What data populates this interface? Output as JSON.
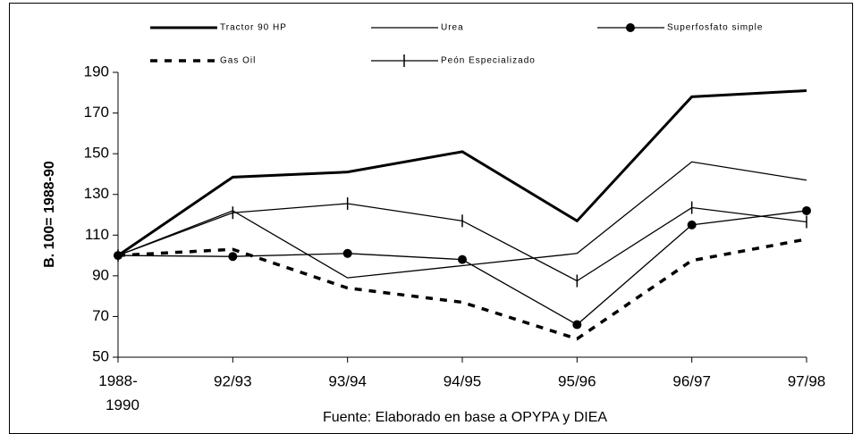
{
  "chart_data": {
    "type": "line",
    "y_label": "B. 100= 1988-90",
    "source": "Fuente: Elaborado en base a OPYPA y DIEA",
    "categories": [
      "1988-\n1990",
      "92/93",
      "93/94",
      "94/95",
      "95/96",
      "96/97",
      "97/98"
    ],
    "ylim": [
      50,
      190
    ],
    "yticks": [
      50,
      70,
      90,
      110,
      130,
      150,
      170,
      190
    ],
    "series": [
      {
        "name": "Tractor 90 HP",
        "color": "#000000",
        "width": 3,
        "dash": false,
        "marker": "none",
        "values": [
          100,
          138.5,
          141,
          151,
          117,
          178,
          181
        ]
      },
      {
        "name": "Urea",
        "color": "#000000",
        "width": 1.3,
        "dash": false,
        "marker": "none",
        "values": [
          100,
          122,
          89,
          95,
          101,
          146,
          137
        ]
      },
      {
        "name": "Superfosfato simple",
        "color": "#000000",
        "width": 1.3,
        "dash": false,
        "marker": "circle",
        "values": [
          100,
          99.5,
          101,
          98,
          66,
          115,
          122
        ]
      },
      {
        "name": "Gas Oil",
        "color": "#000000",
        "width": 3.5,
        "dash": true,
        "marker": "none",
        "values": [
          100,
          103,
          84,
          77,
          59,
          97.5,
          108
        ]
      },
      {
        "name": "Peón Especializado",
        "color": "#000000",
        "width": 1.3,
        "dash": false,
        "marker": "plus",
        "values": [
          100,
          121,
          125.5,
          117,
          87.5,
          123.5,
          116.5
        ]
      }
    ]
  }
}
